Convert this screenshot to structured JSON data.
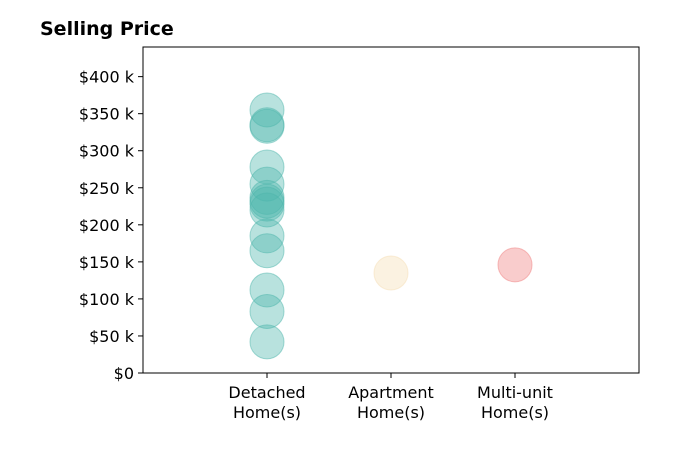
{
  "chart_data": {
    "type": "scatter",
    "title": "Selling Price",
    "xlabel": "",
    "ylabel": "",
    "ylim": [
      0,
      440000
    ],
    "y_ticks": [
      {
        "value": 0,
        "label": "$0"
      },
      {
        "value": 50000,
        "label": "$50 k"
      },
      {
        "value": 100000,
        "label": "$100 k"
      },
      {
        "value": 150000,
        "label": "$150 k"
      },
      {
        "value": 200000,
        "label": "$200 k"
      },
      {
        "value": 250000,
        "label": "$250 k"
      },
      {
        "value": 300000,
        "label": "$300 k"
      },
      {
        "value": 350000,
        "label": "$350 k"
      },
      {
        "value": 400000,
        "label": "$400 k"
      }
    ],
    "categories": [
      {
        "label_lines": [
          "Detached",
          "Home(s)"
        ]
      },
      {
        "label_lines": [
          "Apartment",
          "Home(s)"
        ]
      },
      {
        "label_lines": [
          "Multi-unit",
          "Home(s)"
        ]
      }
    ],
    "grid": false,
    "series": [
      {
        "category_index": 0,
        "color": "#4db6ac",
        "values": [
          355000,
          335000,
          333000,
          278000,
          255000,
          237000,
          232000,
          228000,
          220000,
          185000,
          165000,
          112000,
          83000,
          42000
        ]
      },
      {
        "category_index": 1,
        "color": "#f5deb3",
        "values": [
          135000
        ]
      },
      {
        "category_index": 2,
        "color": "#f08080",
        "values": [
          146000
        ]
      }
    ]
  }
}
